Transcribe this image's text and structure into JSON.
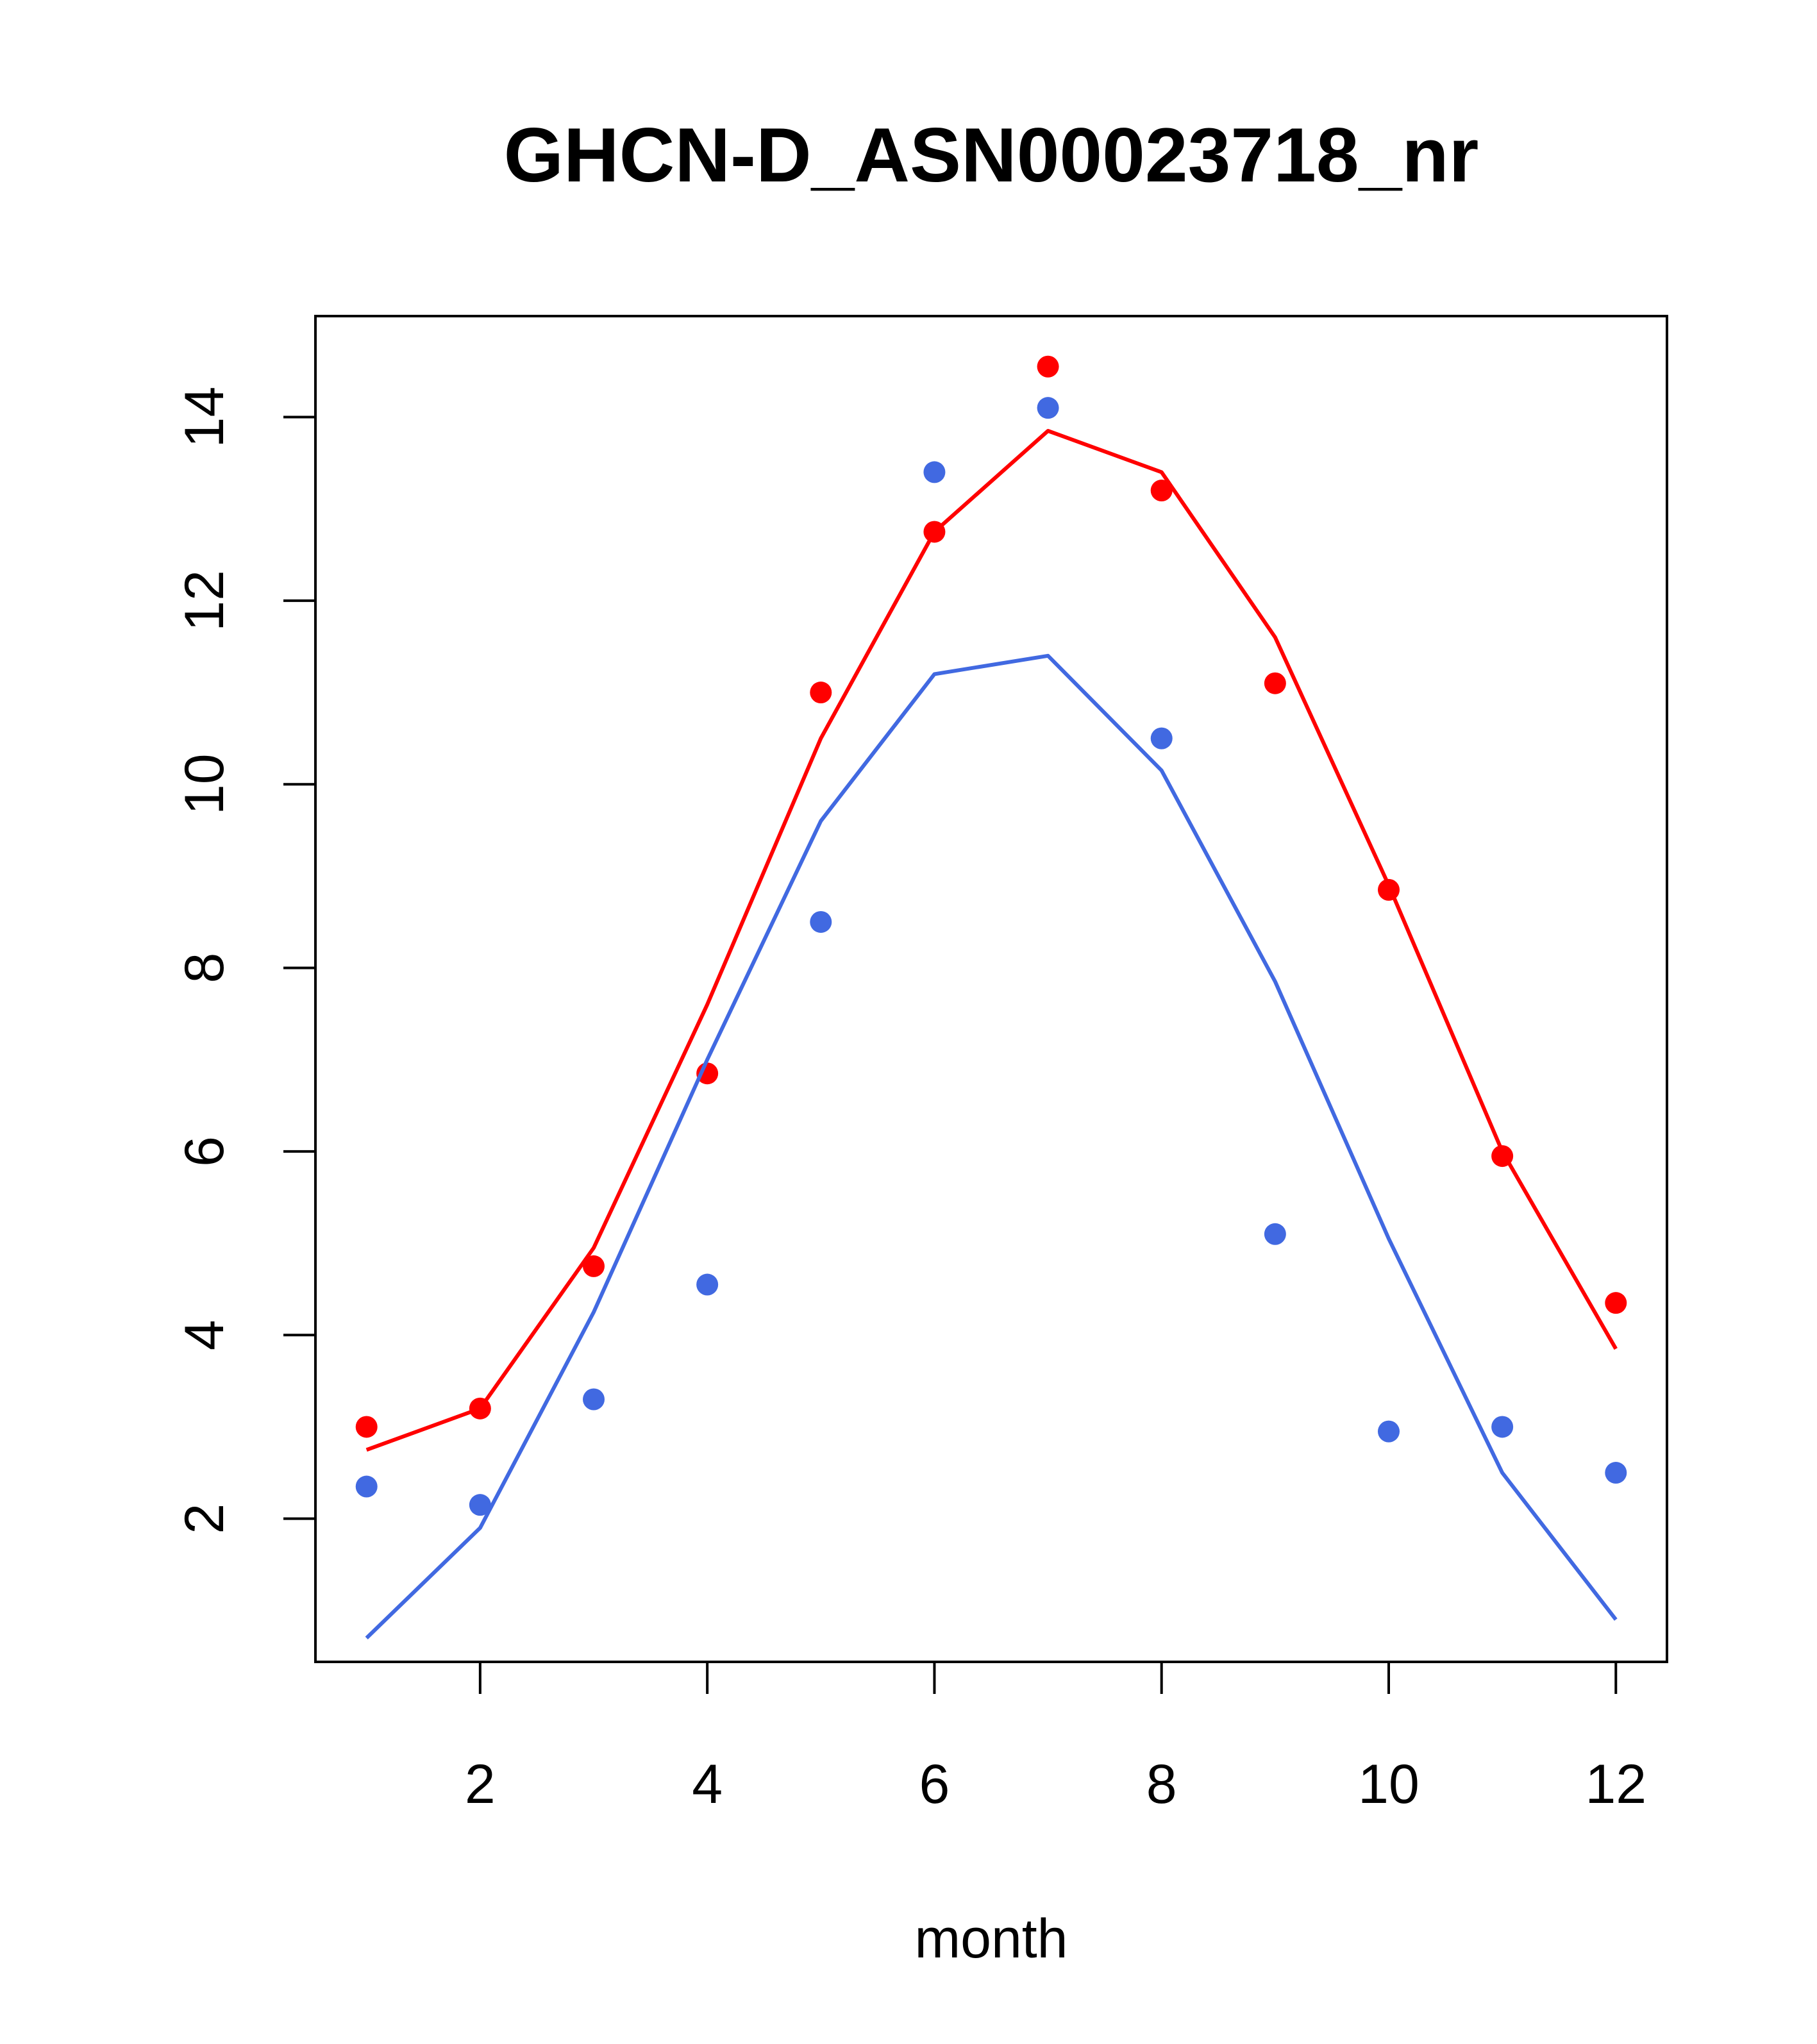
{
  "chart_data": {
    "type": "line",
    "title": "GHCN-D_ASN00023718_nr",
    "xlabel": "month",
    "ylabel": "",
    "xlim": [
      0.55,
      12.45
    ],
    "ylim": [
      0.44,
      15.1
    ],
    "x_ticks": [
      2,
      4,
      6,
      8,
      10,
      12
    ],
    "y_ticks": [
      2,
      4,
      6,
      8,
      10,
      12,
      14
    ],
    "grid": false,
    "legend": "none",
    "x": [
      1,
      2,
      3,
      4,
      5,
      6,
      7,
      8,
      9,
      10,
      11,
      12
    ],
    "series": [
      {
        "color": "#FF0000",
        "points": [
          3.0,
          3.2,
          4.75,
          6.85,
          11.0,
          12.75,
          14.55,
          13.2,
          11.1,
          8.85,
          5.95,
          4.35
        ],
        "line": [
          2.75,
          3.2,
          4.95,
          7.6,
          10.5,
          12.75,
          13.85,
          13.4,
          11.6,
          8.9,
          6.0,
          3.85
        ]
      },
      {
        "color": "#4169E1",
        "points": [
          2.35,
          2.15,
          3.3,
          4.55,
          8.5,
          13.4,
          14.1,
          10.5,
          5.1,
          2.95,
          3.0,
          2.5
        ],
        "line": [
          0.7,
          1.9,
          4.25,
          7.0,
          9.6,
          11.2,
          11.4,
          10.15,
          7.85,
          5.05,
          2.5,
          0.9
        ]
      }
    ]
  }
}
